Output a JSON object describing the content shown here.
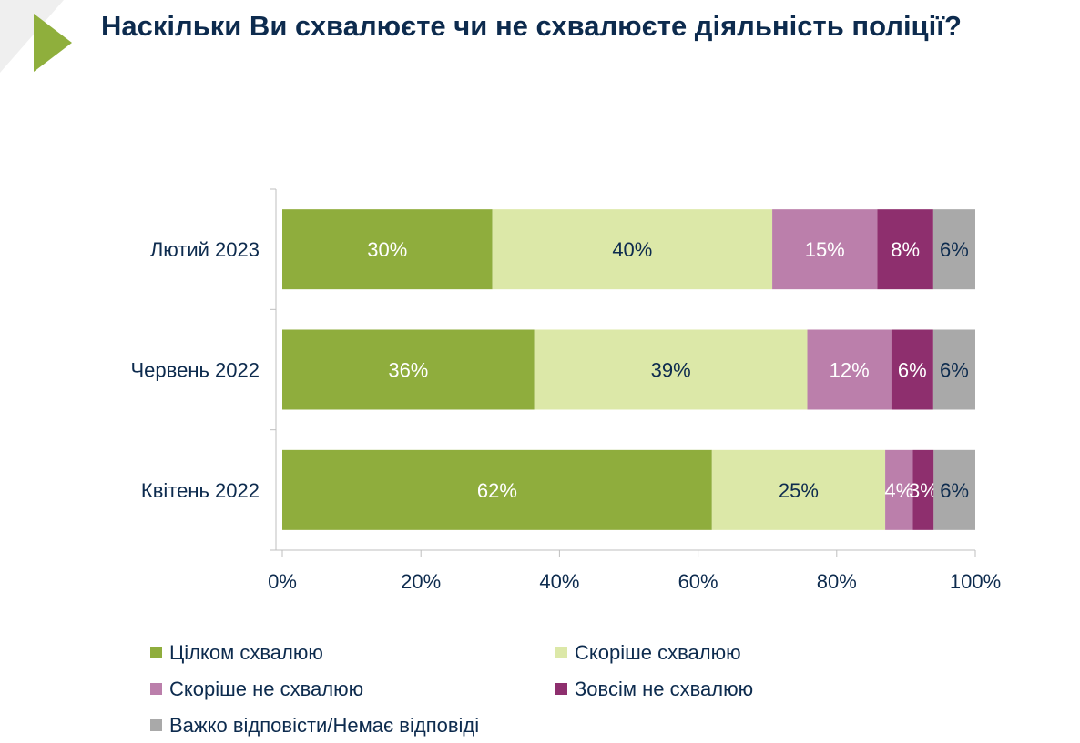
{
  "title": "Наскільки Ви схвалюєте чи не схвалюєте діяльність поліції?",
  "chart_data": {
    "type": "bar",
    "orientation": "horizontal-stacked-100",
    "title": "Наскільки Ви схвалюєте чи не схвалюєте діяльність поліції?",
    "categories": [
      "Лютий 2023",
      "Червень 2022",
      "Квітень 2022"
    ],
    "series": [
      {
        "name": "Цілком схвалюю",
        "color": "#8fad3d",
        "label_color": "#ffffff",
        "values": [
          30,
          36,
          62
        ]
      },
      {
        "name": "Скоріше схвалюю",
        "color": "#dce8a8",
        "label_color": "#0d2b4e",
        "values": [
          40,
          39,
          25
        ]
      },
      {
        "name": "Скоріше не схвалюю",
        "color": "#bb7fab",
        "label_color": "#ffffff",
        "values": [
          15,
          12,
          4
        ]
      },
      {
        "name": "Зовсім не схвалюю",
        "color": "#8e2f6e",
        "label_color": "#ffffff",
        "values": [
          8,
          6,
          3
        ]
      },
      {
        "name": "Важко відповісти/Немає відповіді",
        "color": "#a9a9a9",
        "label_color": "#0d2b4e",
        "values": [
          6,
          6,
          6
        ]
      }
    ],
    "xlim": [
      0,
      100
    ],
    "xticks": [
      "0%",
      "20%",
      "40%",
      "60%",
      "80%",
      "100%"
    ],
    "grid": false,
    "legend_position": "bottom"
  }
}
